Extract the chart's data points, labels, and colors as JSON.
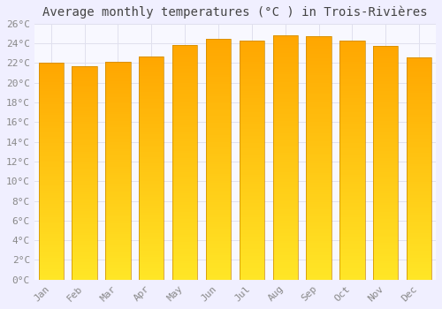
{
  "title": "Average monthly temperatures (°C ) in Trois-Rivières",
  "months": [
    "Jan",
    "Feb",
    "Mar",
    "Apr",
    "May",
    "Jun",
    "Jul",
    "Aug",
    "Sep",
    "Oct",
    "Nov",
    "Dec"
  ],
  "temperatures": [
    22.0,
    21.7,
    22.1,
    22.7,
    23.8,
    24.5,
    24.3,
    24.8,
    24.7,
    24.3,
    23.7,
    22.6
  ],
  "bar_color_top": "#FFAA00",
  "bar_color_bottom": "#FFD060",
  "bar_edge_color": "#CC8800",
  "background_color": "#F0EFFF",
  "plot_bg_color": "#F8F8FF",
  "grid_color": "#E0E0EE",
  "ylim": [
    0,
    26
  ],
  "ytick_step": 2,
  "title_fontsize": 10,
  "tick_fontsize": 8,
  "tick_color": "#888888",
  "title_color": "#444444",
  "font_family": "monospace"
}
